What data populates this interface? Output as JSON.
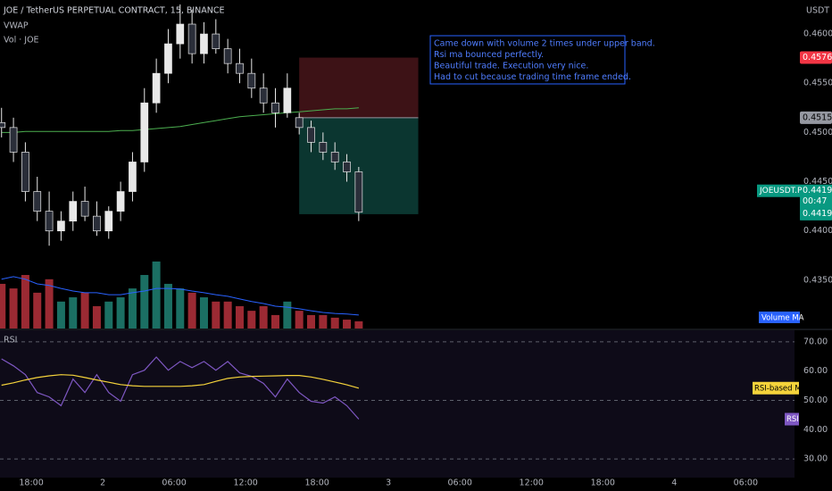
{
  "chart_data": [
    {
      "type": "candlestick",
      "title": "JOE / TetherUS PERPETUAL CONTRACT, 15, BINANCE",
      "unit": "USDT",
      "x": [
        15.5,
        16.5,
        17.5,
        18.5,
        19.5,
        20.5,
        21.5,
        22.5,
        23.5,
        24.5,
        25.5,
        26.5,
        27.5,
        28.5,
        29.5,
        30.5,
        31.5,
        32.5,
        33.5,
        34.5,
        35.5,
        36.5,
        37.5,
        38.5,
        39.5,
        40.5,
        41.5,
        42.5,
        43.5,
        44.5,
        45.5
      ],
      "open": [
        0.451,
        0.4505,
        0.448,
        0.444,
        0.442,
        0.44,
        0.441,
        0.443,
        0.4415,
        0.44,
        0.442,
        0.444,
        0.447,
        0.453,
        0.456,
        0.459,
        0.461,
        0.458,
        0.46,
        0.4585,
        0.457,
        0.456,
        0.4545,
        0.453,
        0.452,
        0.4515,
        0.4505,
        0.449,
        0.448,
        0.447,
        0.446
      ],
      "high": [
        0.4525,
        0.4515,
        0.449,
        0.4455,
        0.444,
        0.442,
        0.444,
        0.4445,
        0.443,
        0.4425,
        0.445,
        0.448,
        0.4545,
        0.4575,
        0.4605,
        0.463,
        0.4625,
        0.4612,
        0.4615,
        0.4595,
        0.4585,
        0.4575,
        0.456,
        0.4545,
        0.456,
        0.452,
        0.4512,
        0.45,
        0.449,
        0.4478,
        0.4465
      ],
      "low": [
        0.4495,
        0.447,
        0.443,
        0.441,
        0.4385,
        0.439,
        0.44,
        0.441,
        0.4395,
        0.4392,
        0.441,
        0.443,
        0.446,
        0.452,
        0.455,
        0.4575,
        0.457,
        0.457,
        0.458,
        0.456,
        0.455,
        0.4535,
        0.452,
        0.4505,
        0.4515,
        0.4498,
        0.448,
        0.4472,
        0.4462,
        0.445,
        0.441
      ],
      "close": [
        0.4505,
        0.448,
        0.444,
        0.442,
        0.44,
        0.441,
        0.443,
        0.4415,
        0.44,
        0.442,
        0.444,
        0.447,
        0.453,
        0.456,
        0.459,
        0.461,
        0.458,
        0.46,
        0.4585,
        0.457,
        0.456,
        0.4545,
        0.453,
        0.452,
        0.4545,
        0.4505,
        0.449,
        0.448,
        0.447,
        0.446,
        0.4419
      ],
      "up_color": "#e8e8e8",
      "down_color": "#2a2e39",
      "series": [
        {
          "name": "VWAP",
          "color": "#4caf50",
          "values": [
            0.45,
            0.45,
            0.4501,
            0.4501,
            0.4501,
            0.4501,
            0.4501,
            0.4501,
            0.4501,
            0.4501,
            0.4502,
            0.4502,
            0.4503,
            0.4504,
            0.4505,
            0.4506,
            0.4508,
            0.451,
            0.4512,
            0.4514,
            0.4516,
            0.4517,
            0.4518,
            0.4519,
            0.452,
            0.4521,
            0.4522,
            0.4523,
            0.4524,
            0.4524,
            0.4525
          ]
        },
        {
          "name": "Vol · JOE",
          "up_color": "#1b6f63",
          "down_color": "#9b2a33",
          "values": [
            13.6,
            12.2,
            16.3,
            10.9,
            15,
            8.2,
            9.5,
            10.9,
            6.8,
            8.2,
            9.5,
            12.2,
            16.3,
            20.4,
            13.6,
            12.2,
            10.9,
            9.5,
            8.2,
            8.2,
            6.8,
            5.4,
            6.8,
            4.1,
            8.2,
            5.4,
            4.1,
            4.1,
            3.3,
            2.7,
            2.2
          ]
        },
        {
          "name": "Volume MA",
          "color": "#2962ff",
          "values": [
            15,
            15.8,
            15,
            13.6,
            13.1,
            12.2,
            11.4,
            10.9,
            10.9,
            10.3,
            10.3,
            10.9,
            11.4,
            12.2,
            12.2,
            12,
            11.4,
            10.9,
            10.3,
            9.8,
            9,
            8.2,
            7.6,
            6.8,
            6.5,
            6,
            5.4,
            4.9,
            4.6,
            4.4,
            4.1
          ]
        }
      ],
      "vlim": [
        0,
        100
      ],
      "xlim": [
        15.37,
        82.1
      ],
      "xticks": [
        {
          "value": 18,
          "label": "18:00"
        },
        {
          "value": 24,
          "label": "2"
        },
        {
          "value": 30,
          "label": "06:00"
        },
        {
          "value": 36,
          "label": "12:00"
        },
        {
          "value": 42,
          "label": "18:00"
        },
        {
          "value": 48,
          "label": "3"
        },
        {
          "value": 54,
          "label": "06:00"
        },
        {
          "value": 60,
          "label": "12:00"
        },
        {
          "value": 66,
          "label": "18:00"
        },
        {
          "value": 72,
          "label": "4"
        },
        {
          "value": 78,
          "label": "06:00"
        }
      ],
      "ylim": [
        0.43009,
        0.46345
      ],
      "yticks": [
        {
          "value": 0.46,
          "label": "0.4600"
        },
        {
          "value": 0.455,
          "label": "0.4550"
        },
        {
          "value": 0.45,
          "label": "0.4500"
        },
        {
          "value": 0.445,
          "label": "0.4450"
        },
        {
          "value": 0.44,
          "label": "0.4400"
        },
        {
          "value": 0.435,
          "label": "0.4350"
        }
      ],
      "position": {
        "entry": 0.4515,
        "stop": 0.4576,
        "target": 0.4417,
        "start": 40.5,
        "end": 50.5
      },
      "last_price": {
        "symbol": "JOEUSDT.P",
        "price": 0.4419,
        "countdown": "00:47",
        "close": 0.4419
      },
      "annotation": [
        "Came down with volume 2 times under upper band.",
        "Rsi ma bounced perfectly.",
        "Beautiful trade. Execution very nice.",
        "Had to cut because trading time frame ended."
      ]
    },
    {
      "type": "line",
      "title": "RSI",
      "series": [
        {
          "name": "RSI",
          "color": "#7e57c2",
          "values": [
            64.2,
            61.8,
            58.8,
            52.7,
            51.2,
            48.2,
            57.3,
            52.7,
            58.8,
            52.7,
            49.7,
            58.8,
            60.3,
            64.8,
            60.3,
            63.3,
            61.2,
            63.3,
            60.3,
            63.3,
            59.4,
            58.2,
            55.8,
            51.2,
            57.3,
            52.7,
            49.7,
            49.1,
            51.2,
            48.2,
            43.6
          ]
        },
        {
          "name": "RSI-based MA",
          "color": "#f5d33b",
          "values": [
            55.2,
            56,
            57,
            57.8,
            58.4,
            58.8,
            58.6,
            57.8,
            57,
            56.2,
            55.4,
            55,
            54.8,
            54.8,
            54.8,
            54.8,
            55,
            55.4,
            56.5,
            57.5,
            58,
            58.2,
            58.3,
            58.4,
            58.5,
            58.5,
            58,
            57.2,
            56.3,
            55.3,
            54.2
          ]
        }
      ],
      "ylim": [
        23.64,
        73.94
      ],
      "yticks": [
        {
          "value": 70,
          "label": "70.00"
        },
        {
          "value": 60,
          "label": "60.00"
        },
        {
          "value": 50,
          "label": "50.00"
        },
        {
          "value": 40,
          "label": "40.00"
        },
        {
          "value": 30,
          "label": "30.00"
        }
      ]
    }
  ]
}
